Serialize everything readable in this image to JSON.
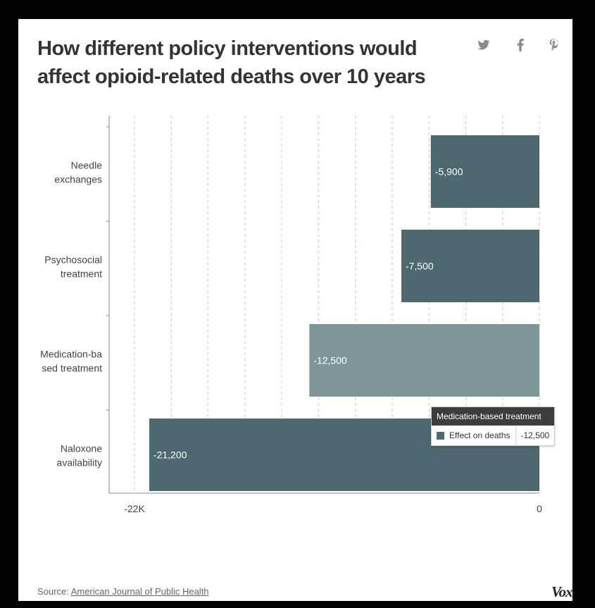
{
  "header": {
    "title": "How different policy interventions would affect opioid-related deaths over 10 years",
    "share_icons": [
      "twitter-icon",
      "facebook-icon",
      "pinterest-icon"
    ]
  },
  "colors": {
    "bar": "#4e6870",
    "bar_highlight": "#7f9699",
    "grid": "#cccccc",
    "axis": "#888888"
  },
  "chart_data": {
    "type": "bar",
    "orientation": "horizontal",
    "categories": [
      [
        "Needle",
        "exchanges"
      ],
      [
        "Psychosocial",
        "treatment"
      ],
      [
        "Medication-ba",
        "sed treatment"
      ],
      [
        "Naloxone",
        "availability"
      ]
    ],
    "series": [
      {
        "name": "Effect on deaths",
        "values": [
          -5900,
          -7500,
          -12500,
          -21200
        ],
        "labels": [
          "-5,900",
          "-7,500",
          "-12,500",
          "-21,200"
        ]
      }
    ],
    "highlighted_index": 2,
    "xlim": [
      -22000,
      0
    ],
    "xticks": [
      {
        "value": -22000,
        "label": "-22K"
      },
      {
        "value": 0,
        "label": "0"
      }
    ],
    "grid": true,
    "grid_step": 2000
  },
  "tooltip": {
    "title": "Medication-based treatment",
    "series_name": "Effect on deaths",
    "value": "-12,500"
  },
  "footer": {
    "source_prefix": "Source:",
    "source_link": "American Journal of Public Health",
    "brand": "Vox"
  }
}
